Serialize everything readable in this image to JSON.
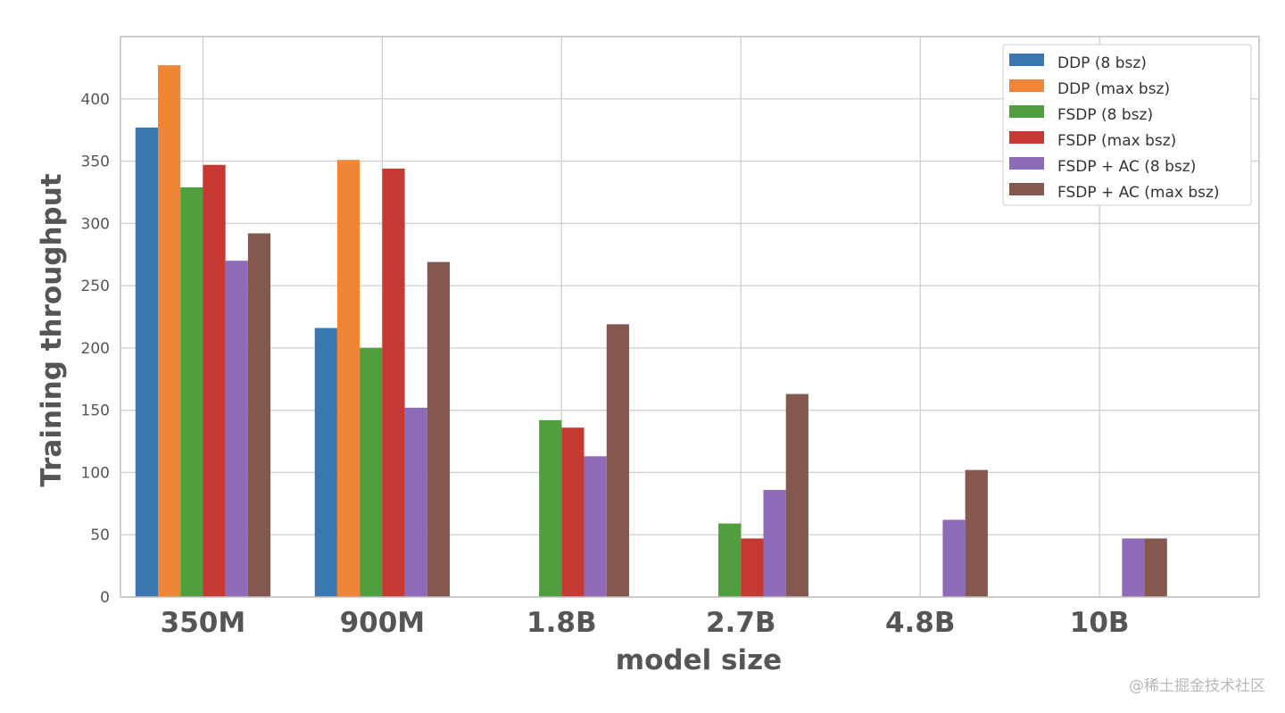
{
  "chart_data": {
    "type": "bar",
    "title": "",
    "xlabel": "model size",
    "ylabel": "Training throughput",
    "categories": [
      "350M",
      "900M",
      "1.8B",
      "2.7B",
      "4.8B",
      "10B"
    ],
    "ylim": [
      0,
      450
    ],
    "yticks": [
      0,
      50,
      100,
      150,
      200,
      250,
      300,
      350,
      400
    ],
    "grid": true,
    "legend_position": "top-right",
    "series": [
      {
        "name": "DDP (8 bsz)",
        "color": "#3a76af",
        "values": [
          377,
          216,
          null,
          null,
          null,
          null
        ]
      },
      {
        "name": "DDP (max bsz)",
        "color": "#ef8636",
        "values": [
          427,
          351,
          null,
          null,
          null,
          null
        ]
      },
      {
        "name": "FSDP (8 bsz)",
        "color": "#519e3e",
        "values": [
          329,
          200,
          142,
          59,
          null,
          null
        ]
      },
      {
        "name": "FSDP (max bsz)",
        "color": "#c53932",
        "values": [
          347,
          344,
          136,
          47,
          null,
          null
        ]
      },
      {
        "name": "FSDP + AC (8 bsz)",
        "color": "#8d6bb8",
        "values": [
          270,
          152,
          113,
          86,
          62,
          47
        ]
      },
      {
        "name": "FSDP + AC (max bsz)",
        "color": "#84584e",
        "values": [
          292,
          269,
          219,
          163,
          102,
          47
        ]
      }
    ]
  },
  "watermark": "@稀土掘金技术社区"
}
